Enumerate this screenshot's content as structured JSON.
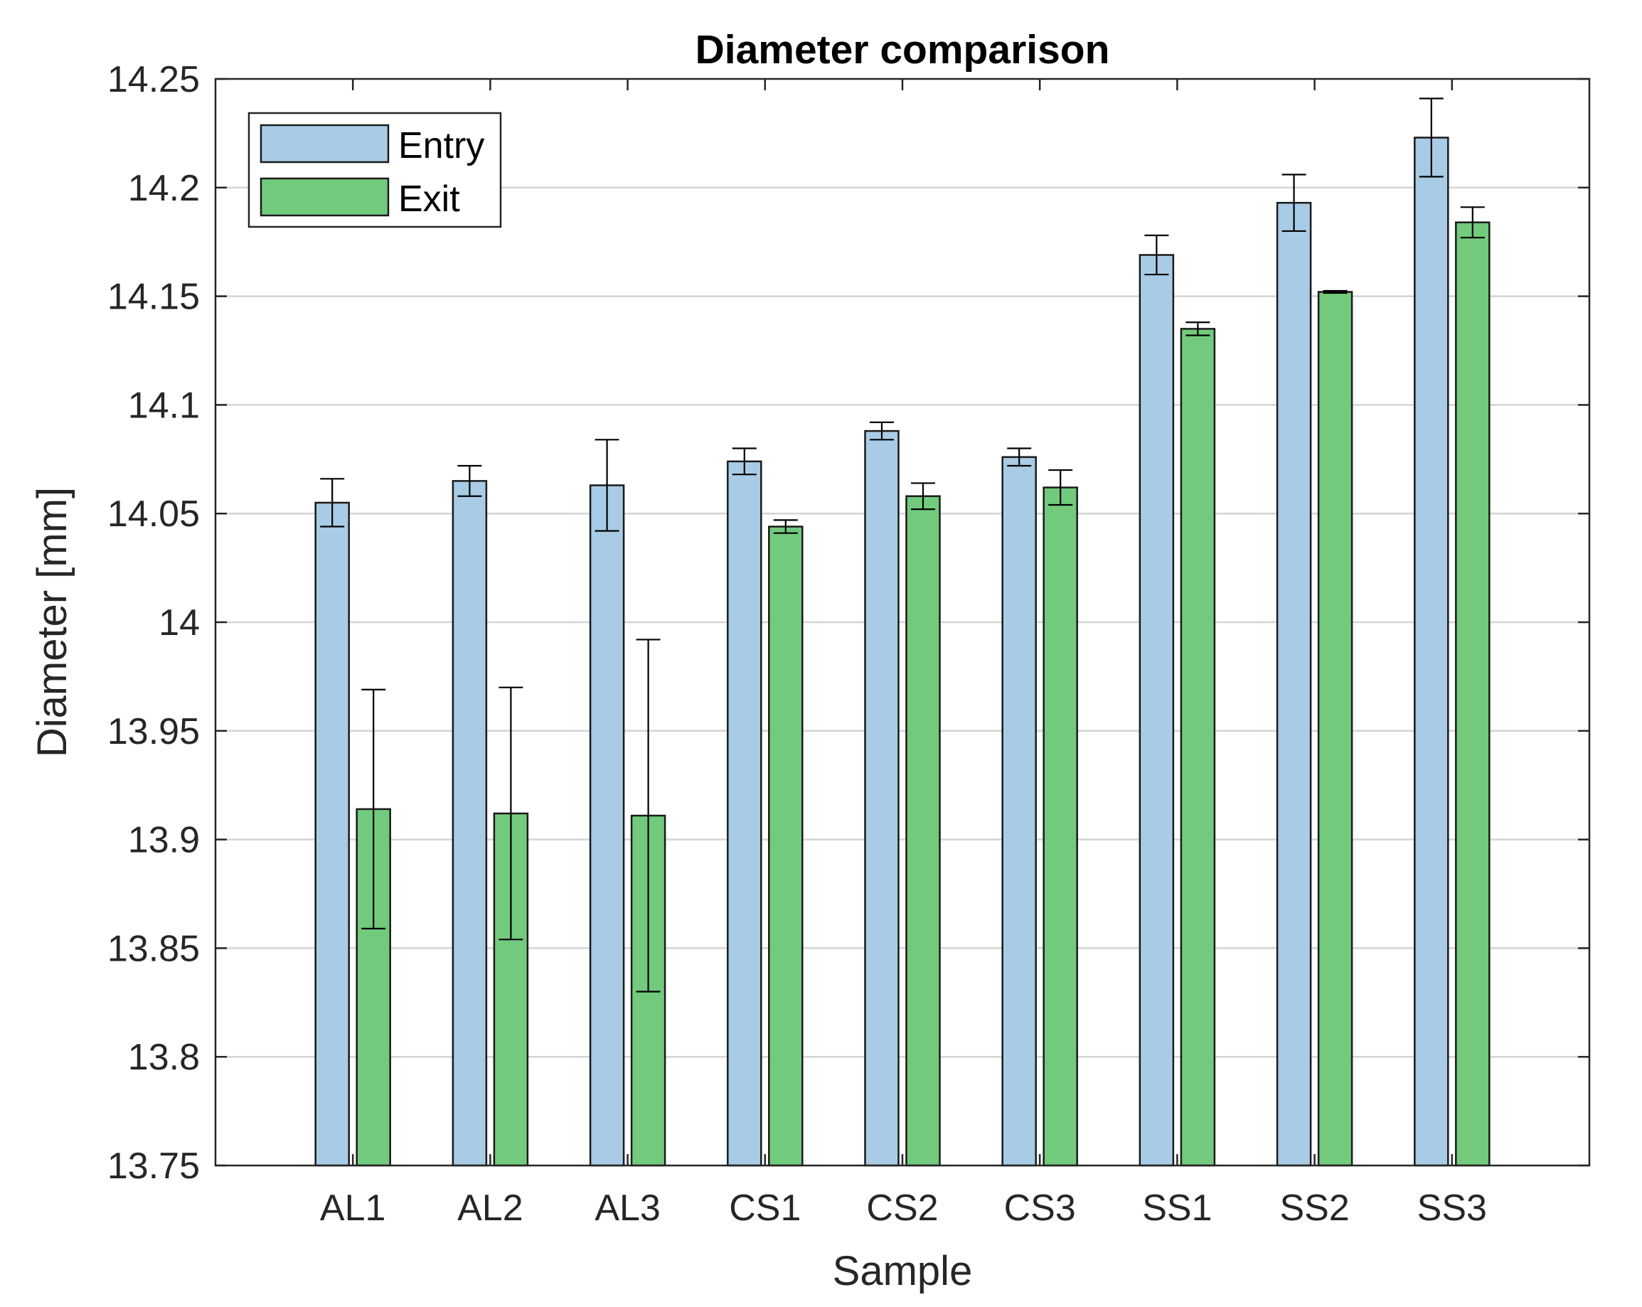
{
  "chart_data": {
    "type": "bar",
    "title": "Diameter comparison",
    "xlabel": "Sample",
    "ylabel": "Diameter [mm]",
    "ylim": [
      13.75,
      14.25
    ],
    "yticks": [
      13.75,
      13.8,
      13.85,
      13.9,
      13.95,
      14,
      14.05,
      14.1,
      14.15,
      14.2,
      14.25
    ],
    "ytick_labels": [
      "13.75",
      "13.8",
      "13.85",
      "13.9",
      "13.95",
      "14",
      "14.05",
      "14.1",
      "14.15",
      "14.2",
      "14.25"
    ],
    "grid": true,
    "legend_position": "top-left",
    "categories": [
      "AL1",
      "AL2",
      "AL3",
      "CS1",
      "CS2",
      "CS3",
      "SS1",
      "SS2",
      "SS3"
    ],
    "series": [
      {
        "name": "Entry",
        "color": "#a8cce6",
        "values": [
          14.055,
          14.065,
          14.063,
          14.074,
          14.088,
          14.076,
          14.169,
          14.193,
          14.223
        ],
        "errors": [
          0.011,
          0.007,
          0.021,
          0.006,
          0.004,
          0.004,
          0.009,
          0.013,
          0.018
        ]
      },
      {
        "name": "Exit",
        "color": "#72ca7d",
        "values": [
          13.914,
          13.912,
          13.911,
          14.044,
          14.058,
          14.062,
          14.135,
          14.152,
          14.184
        ],
        "errors": [
          0.055,
          0.058,
          0.081,
          0.003,
          0.006,
          0.008,
          0.003,
          0.0005,
          0.007
        ]
      }
    ]
  }
}
